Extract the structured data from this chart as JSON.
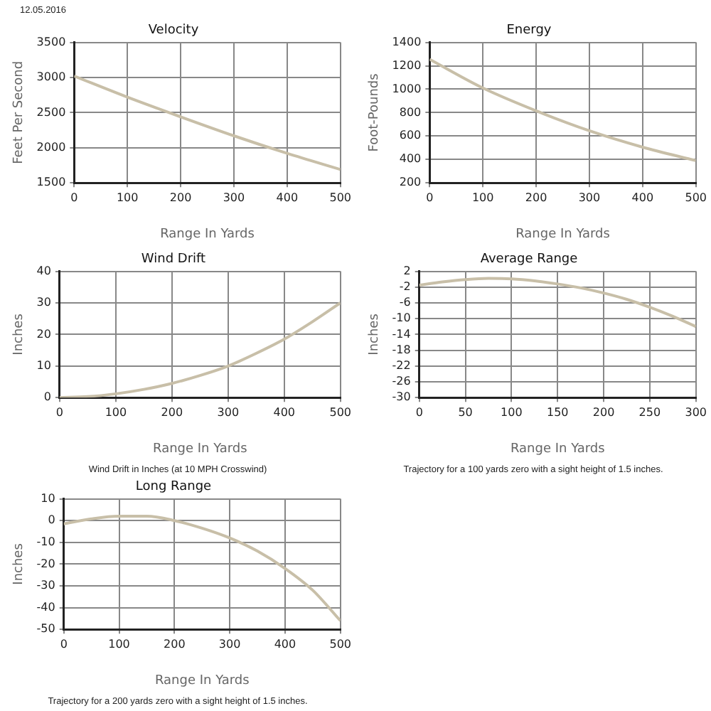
{
  "chart_data": [
    {
      "type": "other",
      "annotations": [
        "12.05.2016"
      ]
    },
    {
      "type": "line",
      "title": "Velocity",
      "xlabel": "Range In Yards",
      "ylabel": "Feet Per Second",
      "x": [
        0,
        100,
        200,
        300,
        400,
        500
      ],
      "series": [
        {
          "color": "#c8bfa8",
          "values": [
            3020,
            2720,
            2440,
            2170,
            1920,
            1690
          ]
        }
      ],
      "xlim": [
        0,
        500
      ],
      "xticks": [
        0,
        100,
        200,
        300,
        400,
        500
      ],
      "ylim": [
        1500,
        3500
      ],
      "yticks": [
        1500,
        2000,
        2500,
        3000,
        3500
      ],
      "grid": true,
      "legend": false,
      "marker": "none"
    },
    {
      "type": "line",
      "title": "Energy",
      "xlabel": "Range In Yards",
      "ylabel": "Foot-Pounds",
      "x": [
        0,
        100,
        200,
        300,
        400,
        500
      ],
      "series": [
        {
          "color": "#c8bfa8",
          "values": [
            1255,
            1010,
            815,
            645,
            505,
            390
          ]
        }
      ],
      "xlim": [
        0,
        500
      ],
      "xticks": [
        0,
        100,
        200,
        300,
        400,
        500
      ],
      "ylim": [
        200,
        1400
      ],
      "yticks": [
        200,
        400,
        600,
        800,
        1000,
        1200,
        1400
      ],
      "grid": true,
      "legend": false,
      "marker": "none"
    },
    {
      "type": "line",
      "title": "Wind Drift",
      "xlabel": "Range In Yards",
      "ylabel": "Inches",
      "annotations": [
        "Wind Drift in Inches (at 10 MPH Crosswind)"
      ],
      "x": [
        0,
        50,
        100,
        150,
        200,
        250,
        300,
        350,
        400,
        450,
        500
      ],
      "series": [
        {
          "color": "#c8bfa8",
          "values": [
            0,
            0.3,
            1.2,
            2.6,
            4.5,
            7,
            10,
            14,
            18.5,
            24,
            30
          ]
        }
      ],
      "xlim": [
        0,
        500
      ],
      "xticks": [
        0,
        100,
        200,
        300,
        400,
        500
      ],
      "ylim": [
        0,
        40
      ],
      "yticks": [
        0,
        10,
        20,
        30,
        40
      ],
      "grid": true,
      "legend": false,
      "marker": "none"
    },
    {
      "type": "line",
      "title": "Average Range",
      "xlabel": "Range In Yards",
      "ylabel": "Inches",
      "annotations": [
        "Trajectory for a 100 yards zero with a sight height of 1.5 inches."
      ],
      "x": [
        0,
        25,
        50,
        75,
        100,
        125,
        150,
        175,
        200,
        225,
        250,
        275,
        300
      ],
      "series": [
        {
          "color": "#c8bfa8",
          "values": [
            -1.5,
            -0.7,
            -0.1,
            0.2,
            0.1,
            -0.4,
            -1.2,
            -2.2,
            -3.5,
            -5.1,
            -7.1,
            -9.4,
            -12
          ]
        }
      ],
      "xlim": [
        0,
        300
      ],
      "xticks": [
        0,
        50,
        100,
        150,
        200,
        250,
        300
      ],
      "ylim": [
        -30,
        2
      ],
      "yticks": [
        -30,
        -26,
        -22,
        -18,
        -14,
        -10,
        -6,
        -2,
        2
      ],
      "grid": true,
      "legend": false,
      "marker": "none"
    },
    {
      "type": "line",
      "title": "Long Range",
      "xlabel": "Range In Yards",
      "ylabel": "Inches",
      "annotations": [
        "Trajectory for a 200 yards zero with a sight height of 1.5 inches."
      ],
      "x": [
        0,
        50,
        100,
        150,
        200,
        250,
        300,
        350,
        400,
        450,
        500
      ],
      "series": [
        {
          "color": "#c8bfa8",
          "values": [
            -1.5,
            0.8,
            2,
            2,
            0,
            -3.5,
            -8,
            -14,
            -22,
            -32,
            -46
          ]
        }
      ],
      "xlim": [
        0,
        500
      ],
      "xticks": [
        0,
        100,
        200,
        300,
        400,
        500
      ],
      "ylim": [
        -50,
        10
      ],
      "yticks": [
        -50,
        -40,
        -30,
        -20,
        -10,
        0,
        10
      ],
      "grid": true,
      "legend": false,
      "marker": "none"
    }
  ]
}
